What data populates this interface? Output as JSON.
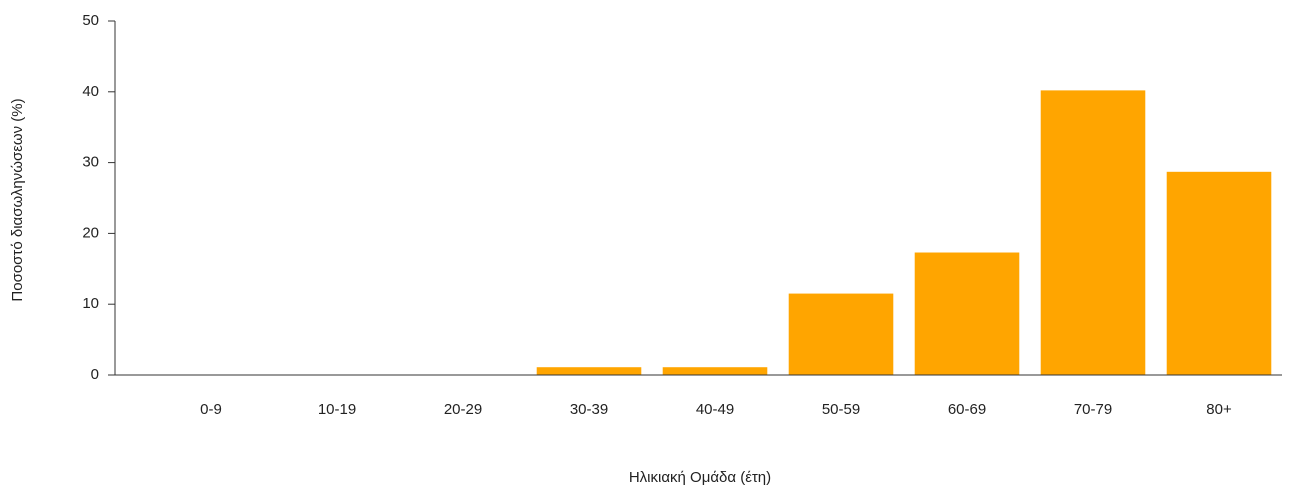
{
  "chart_data": {
    "type": "bar",
    "x_label": "Ηλικιακή Ομάδα (έτη)",
    "y_label": "Ποσοστό διασωληνώσεων (%)",
    "categories": [
      "0-9",
      "10-19",
      "20-29",
      "30-39",
      "40-49",
      "50-59",
      "60-69",
      "70-79",
      "80+"
    ],
    "values": [
      0,
      0,
      0,
      1.1,
      1.1,
      11.5,
      17.3,
      40.2,
      28.7
    ],
    "color": "#ffa500",
    "ylim": [
      0,
      50
    ],
    "yticks": [
      0,
      10,
      20,
      30,
      40,
      50
    ],
    "grid": false
  }
}
